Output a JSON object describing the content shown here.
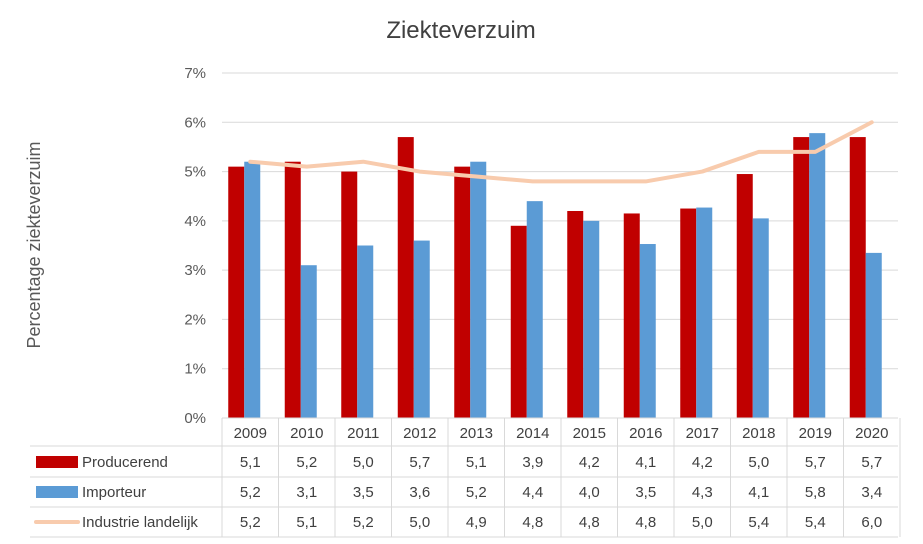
{
  "chart_data": {
    "type": "bar",
    "title": "Ziekteverzuim",
    "xlabel": "",
    "ylabel": "Percentage ziekteverzuim",
    "ylim": [
      0,
      7
    ],
    "y_ticks": [
      "0%",
      "1%",
      "2%",
      "3%",
      "4%",
      "5%",
      "6%",
      "7%"
    ],
    "grid": true,
    "legend_placement": "data-table-left",
    "categories": [
      "2009",
      "2010",
      "2011",
      "2012",
      "2013",
      "2014",
      "2015",
      "2016",
      "2017",
      "2018",
      "2019",
      "2020"
    ],
    "series": [
      {
        "name": "Producerend",
        "kind": "bar",
        "color": "#C00000",
        "values": [
          5.1,
          5.2,
          5.0,
          5.7,
          5.1,
          3.9,
          4.2,
          4.15,
          4.25,
          4.95,
          5.7,
          5.7
        ],
        "table_labels": [
          "5,1",
          "5,2",
          "5,0",
          "5,7",
          "5,1",
          "3,9",
          "4,2",
          "4,1",
          "4,2",
          "5,0",
          "5,7",
          "5,7"
        ]
      },
      {
        "name": "Importeur",
        "kind": "bar",
        "color": "#5B9BD5",
        "values": [
          5.2,
          3.1,
          3.5,
          3.6,
          5.2,
          4.4,
          4.0,
          3.53,
          4.27,
          4.05,
          5.78,
          3.35
        ],
        "table_labels": [
          "5,2",
          "3,1",
          "3,5",
          "3,6",
          "5,2",
          "4,4",
          "4,0",
          "3,5",
          "4,3",
          "4,1",
          "5,8",
          "3,4"
        ]
      },
      {
        "name": "Industrie landelijk",
        "kind": "line",
        "color": "#F8CBAD",
        "values": [
          5.2,
          5.1,
          5.2,
          5.0,
          4.9,
          4.8,
          4.8,
          4.8,
          5.0,
          5.4,
          5.4,
          6.0
        ],
        "table_labels": [
          "5,2",
          "5,1",
          "5,2",
          "5,0",
          "4,9",
          "4,8",
          "4,8",
          "4,8",
          "5,0",
          "5,4",
          "5,4",
          "6,0"
        ]
      }
    ]
  }
}
